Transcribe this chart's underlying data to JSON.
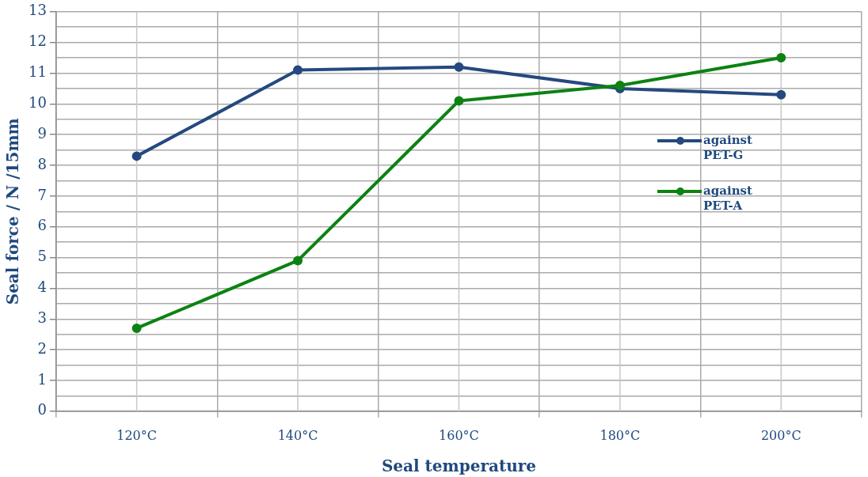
{
  "chart_data": {
    "type": "line",
    "xlabel": "Seal temperature",
    "ylabel": "Seal force / N /15mm",
    "categories": [
      "120°C",
      "140°C",
      "160°C",
      "180°C",
      "200°C"
    ],
    "series": [
      {
        "name": "against PET-G",
        "color": "#25497f",
        "values": [
          8.3,
          11.1,
          11.2,
          10.5,
          10.3
        ]
      },
      {
        "name": "against PET-A",
        "color": "#0c8212",
        "values": [
          2.7,
          4.9,
          10.1,
          10.6,
          11.5
        ]
      }
    ],
    "ylim": [
      0,
      13
    ],
    "yticks": [
      0,
      {
        "value": 0.5,
        "label": null
      },
      1,
      {
        "value": 1.5,
        "label": null
      },
      2,
      {
        "value": 2.5,
        "label": null
      },
      3,
      {
        "value": 3.5,
        "label": null
      },
      4,
      {
        "value": 4.5,
        "label": null
      },
      5,
      {
        "value": 5.5,
        "label": null
      },
      6,
      {
        "value": 6.5,
        "label": null
      },
      7,
      {
        "value": 7.5,
        "label": null
      },
      8,
      {
        "value": 8.5,
        "label": null
      },
      9,
      {
        "value": 9.5,
        "label": null
      },
      10,
      {
        "value": 10.5,
        "label": null
      },
      11,
      {
        "value": 11.5,
        "label": null
      },
      12,
      {
        "value": 12.5,
        "label": null
      },
      13
    ],
    "grid": true,
    "legend": "right",
    "marker": "circle",
    "line_style": "solid"
  }
}
